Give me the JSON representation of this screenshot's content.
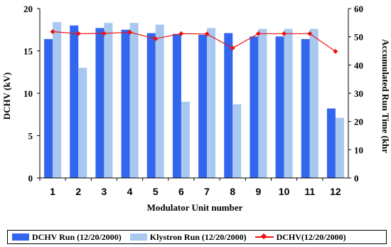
{
  "chart_data": {
    "type": "bar",
    "xlabel": "Modulator Unit number",
    "ylabel": "DCHV (kV)",
    "y2label": "Accumulated Run Time (khr",
    "categories": [
      "1",
      "2",
      "3",
      "4",
      "5",
      "6",
      "7",
      "8",
      "9",
      "10",
      "11",
      "12"
    ],
    "ylim": [
      0,
      20
    ],
    "yticks": [
      0,
      5,
      10,
      15,
      20
    ],
    "y2lim": [
      0,
      60
    ],
    "y2ticks": [
      0,
      10,
      20,
      30,
      40,
      50,
      60
    ],
    "series": [
      {
        "name": "DCHV Run (12/20/2000)",
        "type": "bar",
        "axis": "left",
        "color": "#3366ee",
        "values": [
          16.4,
          18.0,
          17.7,
          17.5,
          17.1,
          17.0,
          16.9,
          17.1,
          16.7,
          16.7,
          16.4,
          8.2
        ]
      },
      {
        "name": "Klystron Run (12/20/2000)",
        "type": "bar",
        "axis": "left",
        "color": "#a8c8f0",
        "values": [
          18.4,
          13.0,
          18.3,
          18.3,
          18.1,
          9.0,
          17.7,
          8.7,
          17.6,
          17.6,
          17.6,
          7.1
        ]
      },
      {
        "name": "DCHV(12/20/2000)",
        "type": "line",
        "axis": "right",
        "color": "#ee1111",
        "values": [
          51.8,
          51.1,
          51.2,
          51.6,
          49.3,
          51.1,
          51.0,
          46.0,
          51.1,
          51.1,
          51.1,
          44.8
        ]
      }
    ],
    "legend_position": "bottom",
    "grid": false
  }
}
